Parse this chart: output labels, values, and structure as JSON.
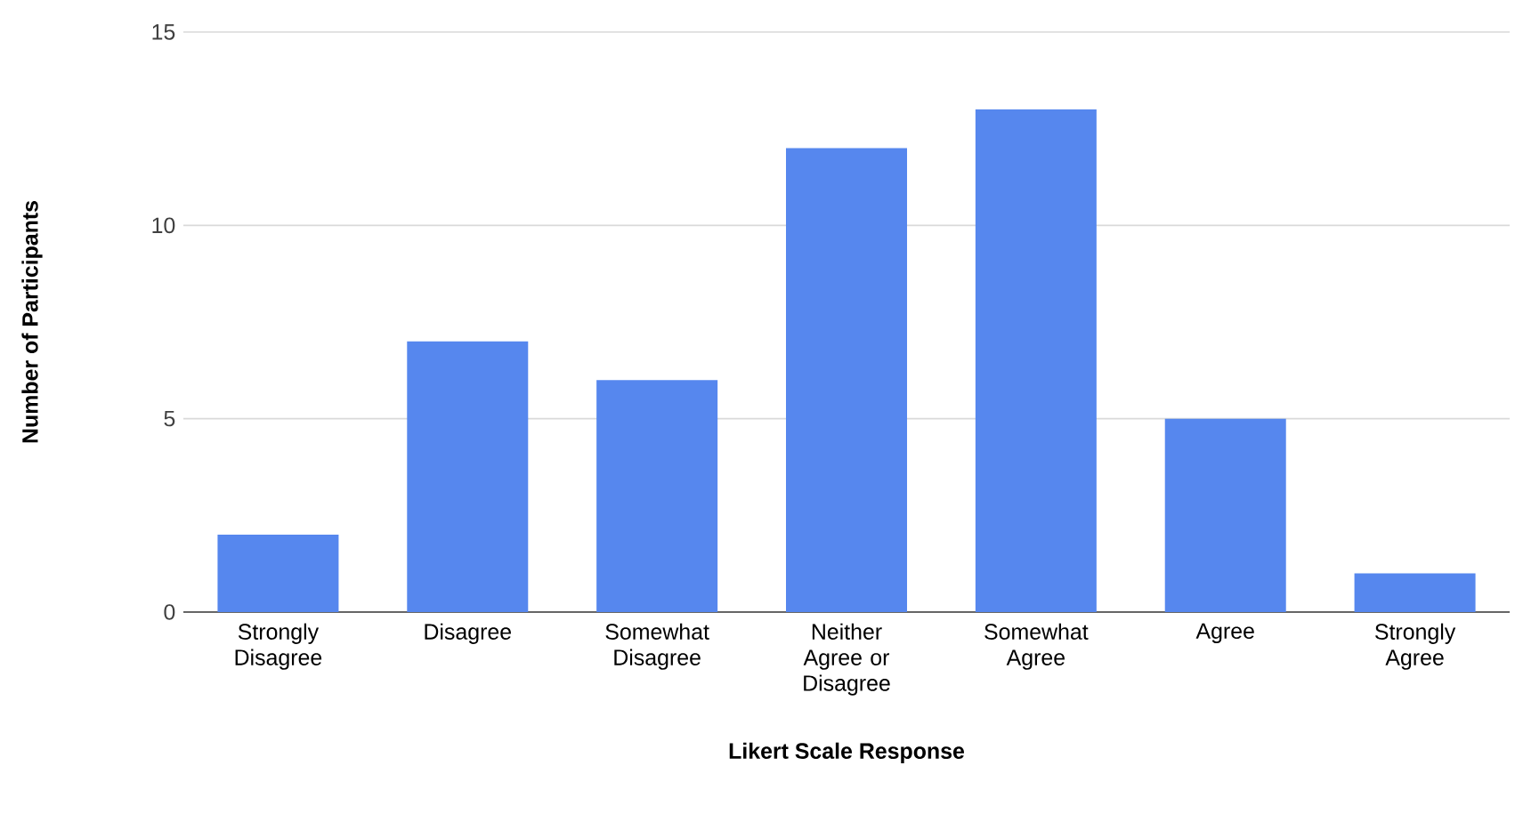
{
  "chart_data": {
    "type": "bar",
    "xlabel": "Likert Scale Response",
    "ylabel": "Number of Participants",
    "categories": [
      "Strongly Disagree",
      "Disagree",
      "Somewhat Disagree",
      "Neither Agree or Disagree",
      "Somewhat Agree",
      "Agree",
      "Strongly Agree"
    ],
    "values": [
      2,
      7,
      6,
      12,
      13,
      5,
      1
    ],
    "color": "#5687ee",
    "ylim": [
      0,
      15
    ],
    "yticks": [
      0,
      5,
      10,
      15
    ],
    "grid": "y"
  }
}
